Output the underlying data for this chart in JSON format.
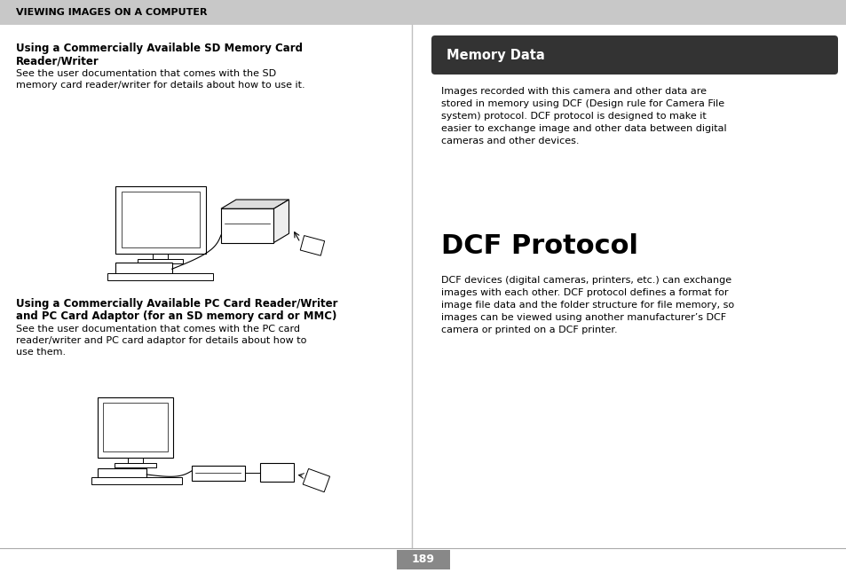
{
  "bg_color": "#ffffff",
  "header_bg": "#c8c8c8",
  "header_text": "VIEWING IMAGES ON A COMPUTER",
  "header_text_color": "#000000",
  "divider_color": "#c0c0c0",
  "page_num": "189",
  "page_num_bg": "#888888",
  "page_num_color": "#ffffff",
  "memory_data_header_bg": "#333333",
  "memory_data_header_text": "Memory Data",
  "memory_data_header_color": "#ffffff",
  "section1_bold_line1": "Using a Commercially Available SD Memory Card",
  "section1_bold_line2": "Reader/Writer",
  "section1_body": "See the user documentation that comes with the SD\nmemory card reader/writer for details about how to use it.",
  "section2_bold_line1": "Using a Commercially Available PC Card Reader/Writer",
  "section2_bold_line2": "and PC Card Adaptor (for an SD memory card or MMC)",
  "section2_body": "See the user documentation that comes with the PC card\nreader/writer and PC card adaptor for details about how to\nuse them.",
  "memory_data_body": "Images recorded with this camera and other data are\nstored in memory using DCF (Design rule for Camera File\nsystem) protocol. DCF protocol is designed to make it\neasier to exchange image and other data between digital\ncameras and other devices.",
  "dcf_title": "DCF Protocol",
  "dcf_body": "DCF devices (digital cameras, printers, etc.) can exchange\nimages with each other. DCF protocol defines a format for\nimage file data and the folder structure for file memory, so\nimages can be viewed using another manufacturer’s DCF\ncamera or printed on a DCF printer.",
  "font_size_header": 8.0,
  "font_size_section_bold": 8.5,
  "font_size_body": 8.0,
  "font_size_dcf_title": 22,
  "font_size_memory_header": 10.5,
  "font_size_page": 9
}
